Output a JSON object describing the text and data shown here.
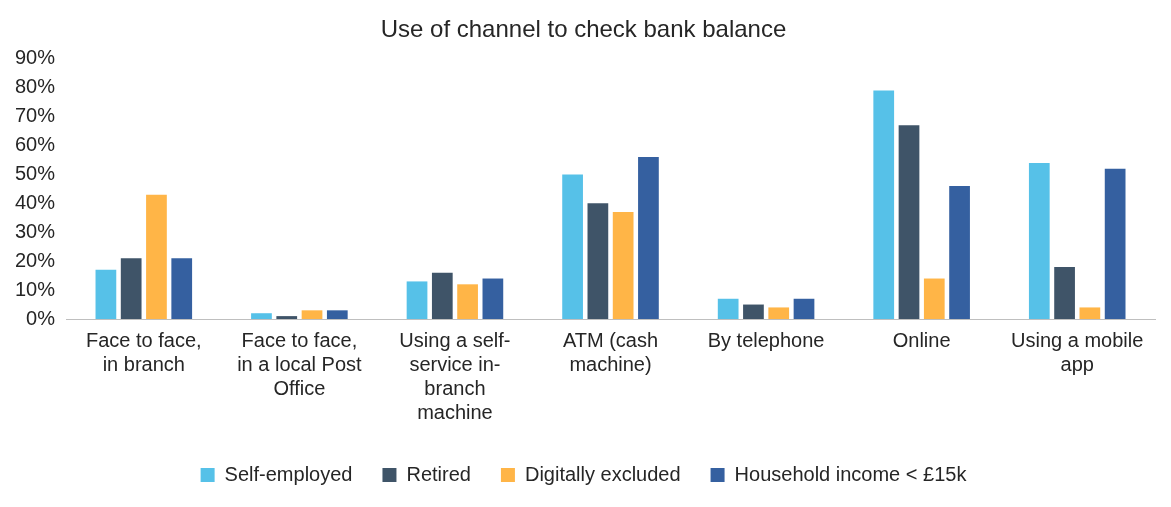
{
  "chart_data": {
    "type": "bar",
    "title": "Use of channel to check bank balance",
    "categories": [
      "Face to face, in branch",
      "Face to face, in a local Post Office",
      "Using a self-service in-branch machine",
      "ATM (cash machine)",
      "By telephone",
      "Online",
      "Using a mobile app"
    ],
    "series": [
      {
        "name": "Self-employed",
        "color": "#56c1e8",
        "values": [
          17,
          2,
          13,
          50,
          7,
          79,
          54
        ]
      },
      {
        "name": "Retired",
        "color": "#3f5468",
        "values": [
          21,
          1,
          16,
          40,
          5,
          67,
          18
        ]
      },
      {
        "name": "Digitally excluded",
        "color": "#ffb547",
        "values": [
          43,
          3,
          12,
          37,
          4,
          14,
          4
        ]
      },
      {
        "name": "Household income < £15k",
        "color": "#3560a0",
        "values": [
          21,
          3,
          14,
          56,
          7,
          46,
          52
        ]
      }
    ],
    "ylim": [
      0,
      90
    ],
    "yticks": [
      {
        "value": 0,
        "label": "0%"
      },
      {
        "value": 10,
        "label": "10%"
      },
      {
        "value": 20,
        "label": "20%"
      },
      {
        "value": 30,
        "label": "30%"
      },
      {
        "value": 40,
        "label": "40%"
      },
      {
        "value": 50,
        "label": "50%"
      },
      {
        "value": 60,
        "label": "60%"
      },
      {
        "value": 70,
        "label": "70%"
      },
      {
        "value": 80,
        "label": "80%"
      },
      {
        "value": 90,
        "label": "90%"
      }
    ],
    "grid": false,
    "legend": "bottom"
  }
}
